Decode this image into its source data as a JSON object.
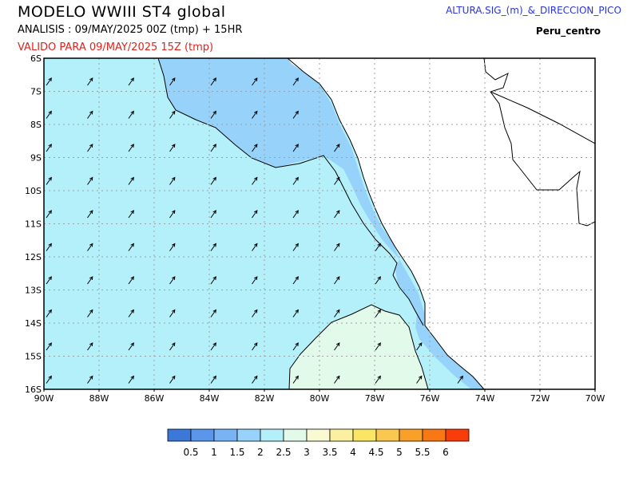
{
  "header": {
    "title": "MODELO  WWIII  ST4  global",
    "analysis": "ANALISIS : 09/MAY/2025 00Z   (tmp) + 15HR",
    "valid": "VALIDO PARA   09/MAY/2025 15Z   (tmp)",
    "product": "ALTURA.SIG_(m)_&_DIRECCION_PICO",
    "region": "Peru_centro"
  },
  "map": {
    "lat_labels": [
      "6S",
      "7S",
      "8S",
      "9S",
      "10S",
      "11S",
      "12S",
      "13S",
      "14S",
      "15S",
      "16S"
    ],
    "lon_labels": [
      "90W",
      "88W",
      "86W",
      "84W",
      "82W",
      "80W",
      "78W",
      "76W",
      "74W",
      "72W",
      "70W"
    ],
    "lat_range": [
      -16,
      -6
    ],
    "lon_range": [
      -90,
      -70
    ],
    "colors": {
      "land": "#ffffff",
      "band_1_5_2": "#96d2fa",
      "band_2_2_5": "#b4f0fa",
      "band_2_5_3": "#e1faea",
      "coast": "#000000",
      "grid": "#a0a0a0"
    },
    "arrow_direction": "SW to NE (peak direction, arrows point to NE)"
  },
  "colorbar": {
    "labels": [
      "0.5",
      "1",
      "1.5",
      "2",
      "2.5",
      "3",
      "3.5",
      "4",
      "4.5",
      "5",
      "5.5",
      "6"
    ],
    "colors": [
      "#3c78d8",
      "#5a96eb",
      "#78b4f5",
      "#96d2fa",
      "#b4f0fa",
      "#e1faea",
      "#fafad2",
      "#faf0a0",
      "#fae664",
      "#fac850",
      "#faa028",
      "#fa7814",
      "#fa3c0a"
    ]
  }
}
